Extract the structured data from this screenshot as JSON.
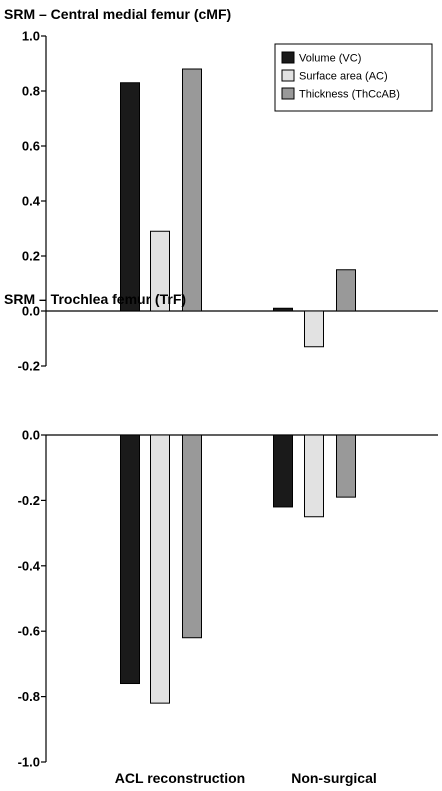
{
  "categories": [
    "ACL reconstruction",
    "Non-surgical"
  ],
  "legend": [
    {
      "label": "Volume (VC)",
      "color": "#1a1a1a"
    },
    {
      "label": "Surface area (AC)",
      "color": "#e2e2e2"
    },
    {
      "label": "Thickness (ThCcAB)",
      "color": "#999999"
    }
  ],
  "chart_data": [
    {
      "type": "bar",
      "title": "SRM – Central medial femur (cMF)",
      "categories": [
        "ACL reconstruction",
        "Non-surgical"
      ],
      "series": [
        {
          "name": "Volume (VC)",
          "values": [
            0.83,
            0.01
          ]
        },
        {
          "name": "Surface area (AC)",
          "values": [
            0.29,
            -0.13
          ]
        },
        {
          "name": "Thickness (ThCcAB)",
          "values": [
            0.88,
            0.15
          ]
        }
      ],
      "ylim": [
        -0.2,
        1.0
      ],
      "yticks": [
        "-0.2",
        "0.0",
        "0.2",
        "0.4",
        "0.6",
        "0.8",
        "1.0"
      ],
      "legend_position": "top-right",
      "grid": false
    },
    {
      "type": "bar",
      "title": "SRM – Trochlea femur (TrF)",
      "categories": [
        "ACL reconstruction",
        "Non-surgical"
      ],
      "series": [
        {
          "name": "Volume (VC)",
          "values": [
            -0.76,
            -0.22
          ]
        },
        {
          "name": "Surface area (AC)",
          "values": [
            -0.82,
            -0.25
          ]
        },
        {
          "name": "Thickness (ThCcAB)",
          "values": [
            -0.62,
            -0.19
          ]
        }
      ],
      "ylim": [
        -1.0,
        0.0
      ],
      "yticks": [
        "-1.0",
        "-0.8",
        "-0.6",
        "-0.4",
        "-0.2",
        "0.0"
      ],
      "grid": false
    }
  ]
}
